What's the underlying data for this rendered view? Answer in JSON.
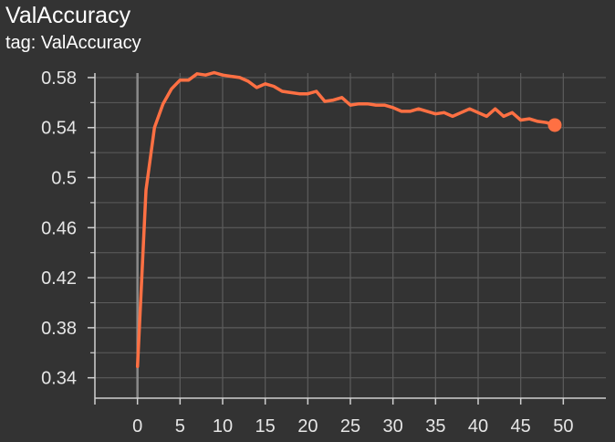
{
  "header": {
    "title": "ValAccuracy",
    "subtitle": "tag: ValAccuracy"
  },
  "colors": {
    "background": "#333333",
    "line": "#ff7043",
    "grid": "#5c5c5c",
    "zero_axis": "#8a8a8a",
    "text": "#ffffff"
  },
  "chart_data": {
    "type": "line",
    "title": "ValAccuracy",
    "subtitle": "tag: ValAccuracy",
    "xlabel": "",
    "ylabel": "",
    "xlim": [
      -5,
      55
    ],
    "ylim": [
      0.3237,
      0.5836
    ],
    "grid": true,
    "legend": "none",
    "x_ticks": [
      0,
      5,
      10,
      15,
      20,
      25,
      30,
      35,
      40,
      45,
      50
    ],
    "y_ticks": [
      0.34,
      0.38,
      0.42,
      0.46,
      0.5,
      0.54,
      0.58
    ],
    "x_tick_labels": [
      "0",
      "5",
      "10",
      "15",
      "20",
      "25",
      "30",
      "35",
      "40",
      "45",
      "50"
    ],
    "y_tick_labels": [
      "0.34",
      "0.38",
      "0.42",
      "0.46",
      "0.5",
      "0.54",
      "0.58"
    ],
    "series": [
      {
        "color": "#ff7043",
        "x": [
          0,
          1,
          2,
          3,
          4,
          5,
          6,
          7,
          8,
          9,
          10,
          11,
          12,
          13,
          14,
          15,
          16,
          17,
          18,
          19,
          20,
          21,
          22,
          23,
          24,
          25,
          26,
          27,
          28,
          29,
          30,
          31,
          32,
          33,
          34,
          35,
          36,
          37,
          38,
          39,
          40,
          41,
          42,
          43,
          44,
          45,
          46,
          47,
          48,
          49
        ],
        "values": [
          0.349,
          0.49,
          0.54,
          0.559,
          0.571,
          0.578,
          0.578,
          0.583,
          0.582,
          0.584,
          0.582,
          0.581,
          0.58,
          0.577,
          0.572,
          0.575,
          0.573,
          0.569,
          0.568,
          0.567,
          0.567,
          0.569,
          0.561,
          0.562,
          0.564,
          0.558,
          0.559,
          0.559,
          0.558,
          0.558,
          0.556,
          0.553,
          0.553,
          0.555,
          0.553,
          0.551,
          0.552,
          0.549,
          0.552,
          0.555,
          0.552,
          0.549,
          0.555,
          0.549,
          0.552,
          0.546,
          0.547,
          0.545,
          0.544,
          0.542
        ]
      }
    ]
  }
}
